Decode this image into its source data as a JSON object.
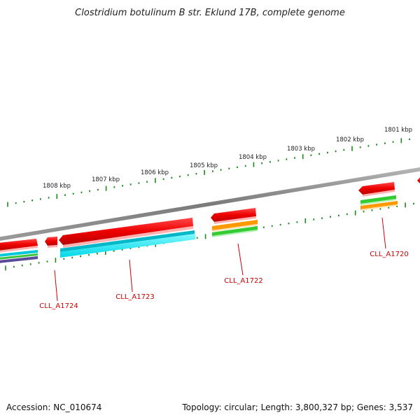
{
  "title": "Clostridium botulinum B str. Eklund 17B, complete genome",
  "outer_ruler_labels": [
    "1808 kbp",
    "1807 kbp",
    "1806 kbp",
    "1805 kbp",
    "1804 kbp",
    "1803 kbp",
    "1802 kbp",
    "1801 kbp"
  ],
  "genes": [
    "CLL_A1724",
    "CLL_A1723",
    "CLL_A1722",
    "CLL_A1720"
  ],
  "footer": {
    "accession": "Accession: NC_010674",
    "summary": "Topology: circular; Length: 3,800,327 bp; Genes: 3,537"
  },
  "colors": {
    "backbone": "#8a8a8a",
    "cds_red": "#ee0000",
    "cyan": "#00e5f0",
    "orange": "#ff9900",
    "green": "#33cc33",
    "purple": "#5a4a9a",
    "ruler_green": "#1a8a1a",
    "label_red": "#cc0000"
  }
}
